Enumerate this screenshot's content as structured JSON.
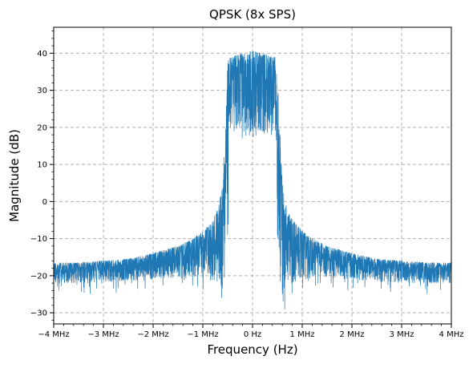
{
  "chart_data": {
    "type": "line",
    "title": "QPSK (8x SPS)",
    "xlabel": "Frequency (Hz)",
    "ylabel": "Magnitude (dB)",
    "xlim": [
      -4,
      4
    ],
    "ylim": [
      -33,
      47
    ],
    "x_unit": "MHz",
    "x_ticks": [
      -4,
      -3,
      -2,
      -1,
      0,
      1,
      2,
      3,
      4
    ],
    "x_tick_labels": [
      "−4 MHz",
      "−3 MHz",
      "−2 MHz",
      "−1 MHz",
      "0 Hz",
      "1 MHz",
      "2 MHz",
      "3 MHz",
      "4 MHz"
    ],
    "y_ticks": [
      -30,
      -20,
      -10,
      0,
      10,
      20,
      30,
      40
    ],
    "y_tick_labels": [
      "−30",
      "−20",
      "−10",
      "0",
      "10",
      "20",
      "30",
      "40"
    ],
    "grid": true,
    "grid_style": "dashed",
    "legend": "none",
    "series": [
      {
        "color": "#1f77b4",
        "envelope": {
          "x": [
            -4.0,
            -3.5,
            -3.0,
            -2.5,
            -2.0,
            -1.5,
            -1.2,
            -1.0,
            -0.8,
            -0.7,
            -0.6,
            -0.55,
            -0.5,
            -0.45,
            0.0,
            0.45,
            0.5,
            0.55,
            0.6,
            0.7,
            0.8,
            1.0,
            1.2,
            1.5,
            2.0,
            2.5,
            3.0,
            3.5,
            4.0
          ],
          "upper": [
            -16.5,
            -16.5,
            -16,
            -15.5,
            -14,
            -12,
            -10,
            -8,
            -5,
            -2,
            5,
            20,
            37,
            40,
            42,
            40,
            37,
            20,
            5,
            -2,
            -5,
            -8,
            -10,
            -12,
            -14,
            -15.5,
            -16,
            -16.5,
            -16.5
          ],
          "lower": [
            -22,
            -22,
            -22,
            -21.5,
            -21,
            -20.5,
            -20.5,
            -21,
            -22,
            -23,
            -25,
            -18,
            -10,
            18,
            16,
            18,
            -10,
            -18,
            -29,
            -23,
            -22,
            -21,
            -20.5,
            -20.5,
            -21,
            -21.5,
            -22,
            -22,
            -22
          ]
        }
      }
    ]
  }
}
